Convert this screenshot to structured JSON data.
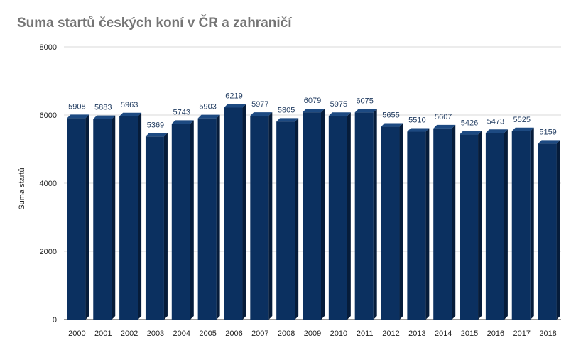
{
  "chart_data": {
    "type": "bar",
    "title": "Suma startů českých koní v ČR a zahraničí",
    "xlabel": "",
    "ylabel": "Suma startů",
    "ylim": [
      0,
      8000
    ],
    "yticks": [
      "0",
      "2000",
      "4000",
      "6000",
      "8000"
    ],
    "categories": [
      "2000",
      "2001",
      "2002",
      "2003",
      "2004",
      "2005",
      "2006",
      "2007",
      "2008",
      "2009",
      "2010",
      "2011",
      "2012",
      "2013",
      "2014",
      "2015",
      "2016",
      "2017",
      "2018"
    ],
    "series": [
      {
        "values": [
          5908,
          5883,
          5963,
          5369,
          5743,
          5903,
          6219,
          5977,
          5805,
          6079,
          5975,
          6075,
          5655,
          5510,
          5607,
          5426,
          5473,
          5525,
          5159
        ],
        "color": "#0b3060"
      }
    ],
    "grid": true,
    "legend": "none",
    "data_labels": true
  }
}
